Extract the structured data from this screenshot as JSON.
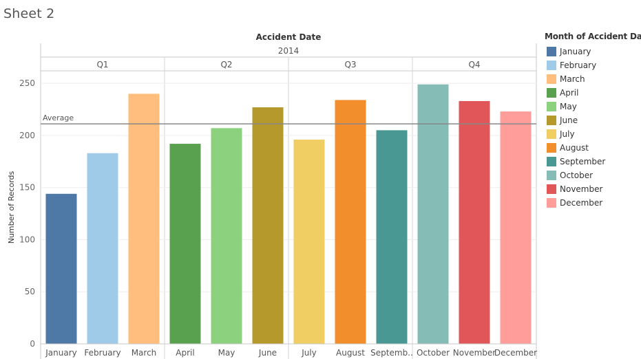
{
  "sheet": {
    "title": "Sheet 2"
  },
  "legend": {
    "title": "Month of Accident Date",
    "items": [
      {
        "label": "January",
        "color": "#4e79a7"
      },
      {
        "label": "February",
        "color": "#a0cbe8"
      },
      {
        "label": "March",
        "color": "#ffbe7d"
      },
      {
        "label": "April",
        "color": "#59a14f"
      },
      {
        "label": "May",
        "color": "#8cd17d"
      },
      {
        "label": "June",
        "color": "#b6992d"
      },
      {
        "label": "July",
        "color": "#f1ce63"
      },
      {
        "label": "August",
        "color": "#f28e2b"
      },
      {
        "label": "September",
        "color": "#499894"
      },
      {
        "label": "October",
        "color": "#86bcb6"
      },
      {
        "label": "November",
        "color": "#e15759"
      },
      {
        "label": "December",
        "color": "#ff9d9a"
      }
    ]
  },
  "chart_data": {
    "type": "bar",
    "column_header": "Accident Date",
    "year": "2014",
    "quarters": [
      "Q1",
      "Q2",
      "Q3",
      "Q4"
    ],
    "categories": [
      "January",
      "February",
      "March",
      "April",
      "May",
      "June",
      "July",
      "August",
      "September",
      "October",
      "November",
      "December"
    ],
    "tick_labels": [
      "January",
      "February",
      "March",
      "April",
      "May",
      "June",
      "July",
      "August",
      "Septemb..",
      "October",
      "November",
      "December"
    ],
    "values": [
      144,
      183,
      240,
      192,
      207,
      227,
      196,
      234,
      205,
      249,
      233,
      223
    ],
    "colors": [
      "#4e79a7",
      "#a0cbe8",
      "#ffbe7d",
      "#59a14f",
      "#8cd17d",
      "#b6992d",
      "#f1ce63",
      "#f28e2b",
      "#499894",
      "#86bcb6",
      "#e15759",
      "#ff9d9a"
    ],
    "ylabel": "Number of Records",
    "yticks": [
      0,
      50,
      100,
      150,
      200,
      250
    ],
    "ylim": [
      0,
      262
    ],
    "reference_line": {
      "label": "Average",
      "value": 211.1
    },
    "grid": true,
    "legend_position": "right"
  }
}
